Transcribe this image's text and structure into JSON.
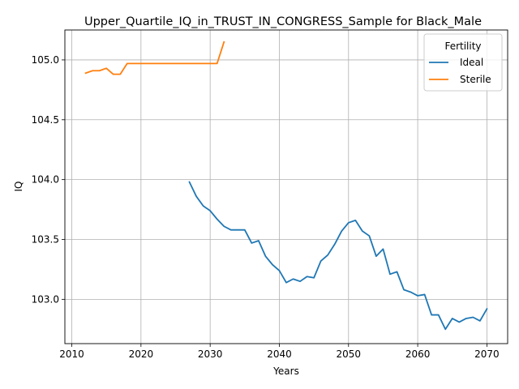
{
  "chart_data": {
    "type": "line",
    "title": "Upper_Quartile_IQ_in_TRUST_IN_CONGRESS_Sample for Black_Male",
    "xlabel": "Years",
    "ylabel": "IQ",
    "xlim": [
      2009.0,
      2073.0
    ],
    "ylim": [
      102.63,
      105.25
    ],
    "xticks": [
      2010,
      2020,
      2030,
      2040,
      2050,
      2060,
      2070
    ],
    "yticks": [
      103.0,
      103.5,
      104.0,
      104.5,
      105.0
    ],
    "ytick_labels": [
      "103.0",
      "103.5",
      "104.0",
      "104.5",
      "105.0"
    ],
    "grid": true,
    "legend": {
      "title": "Fertility",
      "position": "top-right"
    },
    "series": [
      {
        "name": "Ideal",
        "color": "#1f77b4",
        "x": [
          2027,
          2028,
          2029,
          2030,
          2031,
          2032,
          2033,
          2034,
          2035,
          2036,
          2037,
          2038,
          2039,
          2040,
          2041,
          2042,
          2043,
          2044,
          2045,
          2046,
          2047,
          2048,
          2049,
          2050,
          2051,
          2052,
          2053,
          2054,
          2055,
          2056,
          2057,
          2058,
          2059,
          2060,
          2061,
          2062,
          2063,
          2064,
          2065,
          2066,
          2067,
          2068,
          2069,
          2070
        ],
        "values": [
          103.98,
          103.86,
          103.78,
          103.74,
          103.67,
          103.61,
          103.58,
          103.58,
          103.58,
          103.47,
          103.49,
          103.36,
          103.29,
          103.24,
          103.14,
          103.17,
          103.15,
          103.19,
          103.18,
          103.32,
          103.37,
          103.46,
          103.57,
          103.64,
          103.66,
          103.57,
          103.53,
          103.36,
          103.42,
          103.21,
          103.23,
          103.08,
          103.06,
          103.03,
          103.04,
          102.87,
          102.87,
          102.75,
          102.84,
          102.81,
          102.84,
          102.85,
          102.82,
          102.92
        ]
      },
      {
        "name": "Sterile",
        "color": "#ff7f0e",
        "x": [
          2012,
          2013,
          2014,
          2015,
          2016,
          2017,
          2018,
          2019,
          2020,
          2021,
          2022,
          2023,
          2024,
          2025,
          2026,
          2027,
          2028,
          2029,
          2030,
          2031,
          2032
        ],
        "values": [
          104.89,
          104.91,
          104.91,
          104.93,
          104.88,
          104.88,
          104.97,
          104.97,
          104.97,
          104.97,
          104.97,
          104.97,
          104.97,
          104.97,
          104.97,
          104.97,
          104.97,
          104.97,
          104.97,
          104.97,
          105.15
        ]
      }
    ]
  }
}
